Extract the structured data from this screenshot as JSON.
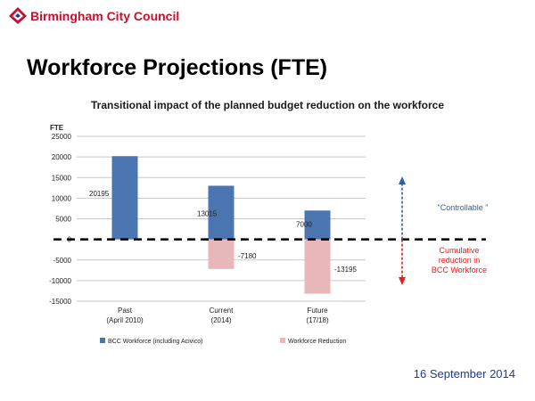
{
  "header": {
    "org_name": "Birmingham City Council",
    "title": "Workforce Projections (FTE)",
    "date": "16 September 2014"
  },
  "chart_data": {
    "type": "bar",
    "title": "Transitional impact of the planned budget reduction on the workforce",
    "ylabel": "FTE",
    "ylim": [
      -15000,
      25000
    ],
    "yticks": [
      25000,
      20000,
      15000,
      10000,
      5000,
      0,
      -5000,
      -10000,
      -15000
    ],
    "categories": [
      {
        "line1": "Past",
        "line2": "(April 2010)"
      },
      {
        "line1": "Current",
        "line2": "(2014)"
      },
      {
        "line1": "Future",
        "line2": "(17/18)"
      }
    ],
    "series": [
      {
        "name": "BCC Workforce (including Acivico)",
        "color": "#4a75b0",
        "values": [
          20195,
          13015,
          7000
        ]
      },
      {
        "name": "Workforce Reduction",
        "color": "#e8b7b9",
        "values": [
          0,
          -7180,
          -13195
        ]
      }
    ],
    "data_labels": {
      "workforce": [
        "20195",
        "13015",
        "7000"
      ],
      "reduction": [
        "",
        "-7180",
        "-13195"
      ]
    },
    "annotations": {
      "controllable": "\"Controllable \"",
      "cumulative": [
        "Cumulative",
        "reduction in",
        "BCC Workforce"
      ]
    },
    "grid": true,
    "legend_position": "bottom"
  }
}
